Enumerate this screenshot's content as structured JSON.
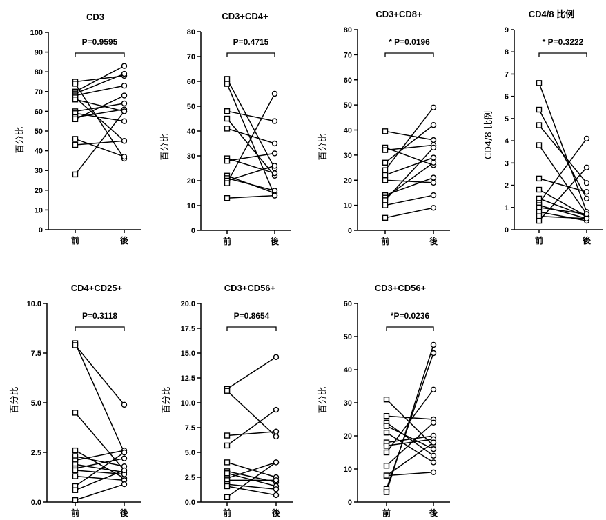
{
  "chart_data": [
    {
      "type": "line",
      "title": "CD3",
      "ylabel": "百分比",
      "categories": [
        "前",
        "後"
      ],
      "ylim": [
        0,
        100
      ],
      "yticks": [
        "0",
        "10",
        "20",
        "30",
        "40",
        "50",
        "60",
        "70",
        "80",
        "90",
        "100"
      ],
      "annotation": "P=0.9595",
      "pairs": [
        [
          75,
          78
        ],
        [
          74,
          36
        ],
        [
          70,
          83
        ],
        [
          69,
          79
        ],
        [
          68,
          73
        ],
        [
          67,
          45
        ],
        [
          66,
          60
        ],
        [
          60,
          64
        ],
        [
          59,
          55
        ],
        [
          57,
          61
        ],
        [
          56,
          68
        ],
        [
          46,
          37
        ],
        [
          43,
          45
        ],
        [
          28,
          60
        ]
      ]
    },
    {
      "type": "line",
      "title": "CD3+CD4+",
      "ylabel": "百分比",
      "categories": [
        "前",
        "後"
      ],
      "ylim": [
        0,
        80
      ],
      "yticks": [
        "0",
        "10",
        "20",
        "30",
        "40",
        "50",
        "60",
        "70",
        "80"
      ],
      "annotation": "P=0.4715",
      "pairs": [
        [
          61,
          25
        ],
        [
          59,
          14
        ],
        [
          48,
          44
        ],
        [
          45,
          22
        ],
        [
          41,
          35
        ],
        [
          29,
          23
        ],
        [
          28,
          31
        ],
        [
          22,
          15
        ],
        [
          21,
          16
        ],
        [
          20,
          26
        ],
        [
          19,
          55
        ],
        [
          13,
          14
        ]
      ]
    },
    {
      "type": "line",
      "title": "CD3+CD8+",
      "ylabel": "百分比",
      "categories": [
        "前",
        "後"
      ],
      "ylim": [
        0,
        80
      ],
      "yticks": [
        "0",
        "10",
        "20",
        "30",
        "40",
        "50",
        "60",
        "70",
        "80"
      ],
      "annotation": "* P=0.0196",
      "pairs": [
        [
          39.5,
          36
        ],
        [
          33,
          26
        ],
        [
          32,
          34
        ],
        [
          27,
          42
        ],
        [
          24,
          49
        ],
        [
          22,
          29
        ],
        [
          20,
          19
        ],
        [
          14,
          21
        ],
        [
          13,
          27
        ],
        [
          12,
          33
        ],
        [
          10,
          14
        ],
        [
          5,
          9
        ]
      ]
    },
    {
      "type": "line",
      "title": "CD4/8 比例",
      "ylabel": "CD4/8 比例",
      "categories": [
        "前",
        "後"
      ],
      "ylim": [
        0,
        9
      ],
      "yticks": [
        "0",
        "1",
        "2",
        "3",
        "4",
        "5",
        "6",
        "7",
        "8",
        "9"
      ],
      "annotation": "* P=0.3222",
      "pairs": [
        [
          6.6,
          0.8
        ],
        [
          5.4,
          1.4
        ],
        [
          4.7,
          2.1
        ],
        [
          3.8,
          0.7
        ],
        [
          2.3,
          1.7
        ],
        [
          1.8,
          0.6
        ],
        [
          1.4,
          0.6
        ],
        [
          1.2,
          4.1
        ],
        [
          1.1,
          0.5
        ],
        [
          1.0,
          0.7
        ],
        [
          0.8,
          0.4
        ],
        [
          0.6,
          0.5
        ],
        [
          0.4,
          2.8
        ]
      ]
    },
    {
      "type": "line",
      "title": "CD4+CD25+",
      "ylabel": "百分比",
      "categories": [
        "前",
        "後"
      ],
      "ylim": [
        0,
        10
      ],
      "yticks": [
        "0.0",
        "2.5",
        "5.0",
        "7.5",
        "10.0"
      ],
      "annotation": "P=0.3118",
      "pairs": [
        [
          8.0,
          2.5
        ],
        [
          7.9,
          4.9
        ],
        [
          4.5,
          1.6
        ],
        [
          2.6,
          1.2
        ],
        [
          2.3,
          1.8
        ],
        [
          2.1,
          2.6
        ],
        [
          1.9,
          1.5
        ],
        [
          1.7,
          2.2
        ],
        [
          1.6,
          1.4
        ],
        [
          1.3,
          1.1
        ],
        [
          0.8,
          2.5
        ],
        [
          0.6,
          1.6
        ],
        [
          0.1,
          0.9
        ]
      ]
    },
    {
      "type": "line",
      "title": "CD3+CD56+",
      "ylabel": "百分比",
      "categories": [
        "前",
        "後"
      ],
      "ylim": [
        0,
        20
      ],
      "yticks": [
        "0.0",
        "2.5",
        "5.0",
        "7.5",
        "10.0",
        "12.5",
        "15.0",
        "17.5",
        "20.0"
      ],
      "annotation": "P=0.8654",
      "pairs": [
        [
          11.4,
          14.6
        ],
        [
          11.2,
          6.6
        ],
        [
          6.7,
          7.1
        ],
        [
          5.7,
          9.3
        ],
        [
          4.0,
          2.5
        ],
        [
          3.1,
          2.0
        ],
        [
          2.9,
          1.6
        ],
        [
          2.4,
          4.0
        ],
        [
          2.2,
          2.2
        ],
        [
          1.8,
          1.3
        ],
        [
          1.6,
          0.7
        ],
        [
          0.5,
          4.0
        ]
      ]
    },
    {
      "type": "line",
      "title": "CD3+CD56+",
      "ylabel": "百分比",
      "categories": [
        "前",
        "後"
      ],
      "ylim": [
        0,
        60
      ],
      "yticks": [
        "0",
        "10",
        "20",
        "30",
        "40",
        "50",
        "60"
      ],
      "annotation": "*P=0.0236",
      "pairs": [
        [
          31,
          17
        ],
        [
          26,
          25
        ],
        [
          24,
          14
        ],
        [
          23,
          16
        ],
        [
          21,
          12
        ],
        [
          18,
          20
        ],
        [
          17,
          19
        ],
        [
          15,
          34
        ],
        [
          11,
          24
        ],
        [
          8,
          9
        ],
        [
          8,
          18
        ],
        [
          4,
          45
        ],
        [
          3,
          47.5
        ]
      ]
    }
  ]
}
